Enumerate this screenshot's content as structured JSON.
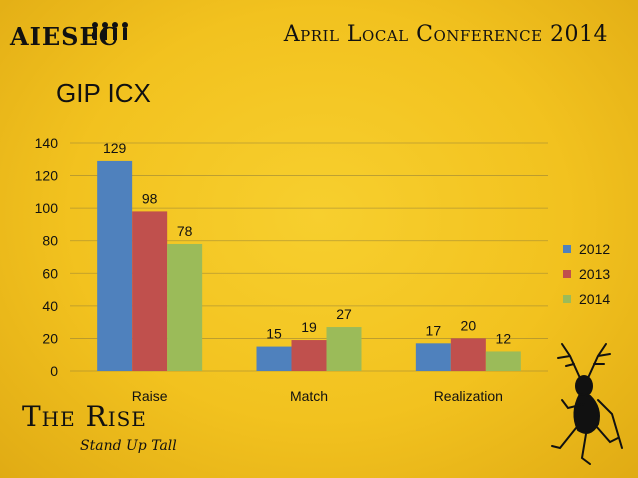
{
  "header": {
    "logo": "AIESEC",
    "conference_title": "April Local Conference 2014"
  },
  "slide_title": "GIP ICX",
  "footer": {
    "brand": "The Rise",
    "tagline": "Stand Up Tall"
  },
  "colors": {
    "2012": "#4f81bd",
    "2013": "#c0504d",
    "2014": "#9bbb59",
    "background": "#f2c21f"
  },
  "chart_data": {
    "type": "bar",
    "categories": [
      "Raise",
      "Match",
      "Realization"
    ],
    "series": [
      {
        "name": "2012",
        "values": [
          129,
          15,
          17
        ]
      },
      {
        "name": "2013",
        "values": [
          98,
          19,
          20
        ]
      },
      {
        "name": "2014",
        "values": [
          78,
          27,
          12
        ]
      }
    ],
    "ylim": [
      0,
      140
    ],
    "yticks": [
      0,
      20,
      40,
      60,
      80,
      100,
      120,
      140
    ],
    "grid": true,
    "legend_position": "right",
    "data_labels": true
  }
}
